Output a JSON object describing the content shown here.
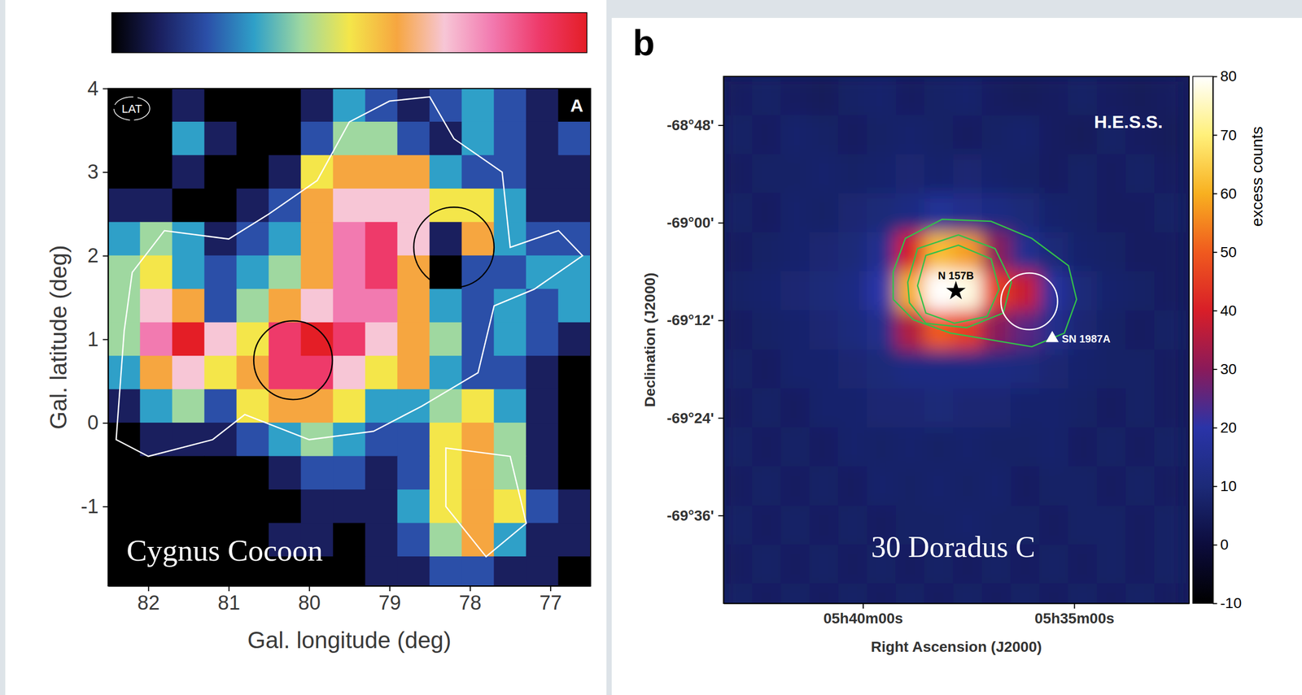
{
  "chart_data": [
    {
      "type": "heatmap",
      "name": "Cygnus Cocoon",
      "instrument": "LAT",
      "panel": "A",
      "x_label": "Gal. longitude (deg)",
      "y_label": "Gal. latitude (deg)",
      "xlim": [
        82.5,
        76.5
      ],
      "ylim": [
        -1.95,
        4
      ],
      "xticks": [
        82,
        81,
        80,
        79,
        78,
        77
      ],
      "yticks": [
        -1,
        0,
        1,
        2,
        3,
        4
      ],
      "zlim": [
        0,
        10
      ],
      "x": [
        82.3,
        81.9,
        81.5,
        81.1,
        80.7,
        80.3,
        79.9,
        79.5,
        79.1,
        78.7,
        78.3,
        77.9,
        77.5,
        77.1,
        76.7
      ],
      "y": [
        3.8,
        3.4,
        3.0,
        2.6,
        2.2,
        1.8,
        1.4,
        1.0,
        0.6,
        0.2,
        -0.2,
        -0.6,
        -1.0,
        -1.4,
        -1.8
      ],
      "z": [
        [
          0,
          0,
          1,
          0,
          0,
          0,
          1,
          3,
          2,
          1,
          2,
          3,
          2,
          1,
          0
        ],
        [
          0,
          0,
          3,
          1,
          0,
          0,
          2,
          4,
          4,
          2,
          1,
          3,
          2,
          1,
          2
        ],
        [
          0,
          0,
          1,
          0,
          0,
          1,
          5,
          6,
          6,
          6,
          3,
          2,
          2,
          1,
          1
        ],
        [
          1,
          1,
          0,
          0,
          1,
          2,
          6,
          7,
          7,
          7,
          5,
          5,
          3,
          1,
          1
        ],
        [
          3,
          4,
          3,
          1,
          2,
          3,
          6,
          8,
          9,
          7,
          1,
          6,
          3,
          2,
          2
        ],
        [
          4,
          5,
          3,
          2,
          3,
          4,
          6,
          8,
          9,
          6,
          0,
          2,
          2,
          3,
          3
        ],
        [
          4,
          7,
          6,
          2,
          4,
          6,
          7,
          8,
          8,
          6,
          3,
          2,
          3,
          2,
          3
        ],
        [
          4,
          8,
          10,
          7,
          5,
          9,
          10,
          9,
          7,
          6,
          4,
          2,
          3,
          2,
          1
        ],
        [
          3,
          6,
          7,
          5,
          6,
          9,
          9,
          7,
          5,
          6,
          3,
          2,
          2,
          1,
          0
        ],
        [
          1,
          3,
          4,
          2,
          5,
          6,
          6,
          5,
          3,
          3,
          4,
          5,
          3,
          1,
          0
        ],
        [
          0,
          1,
          1,
          1,
          2,
          3,
          4,
          3,
          2,
          2,
          5,
          6,
          4,
          1,
          0
        ],
        [
          0,
          0,
          0,
          0,
          0,
          1,
          2,
          2,
          1,
          2,
          5,
          6,
          4,
          1,
          0
        ],
        [
          0,
          0,
          0,
          0,
          0,
          0,
          1,
          1,
          1,
          3,
          5,
          6,
          5,
          2,
          1
        ],
        [
          0,
          0,
          0,
          0,
          0,
          1,
          1,
          0,
          1,
          2,
          4,
          6,
          3,
          1,
          1
        ],
        [
          0,
          0,
          0,
          0,
          0,
          0,
          0,
          0,
          1,
          1,
          2,
          2,
          1,
          1,
          0
        ]
      ],
      "circles": [
        {
          "x": 80.2,
          "y": 0.75,
          "r": 0.47
        },
        {
          "x": 78.2,
          "y": 2.1,
          "r": 0.48
        }
      ],
      "contours": [
        {
          "x": [
            82.3,
            82.2,
            81.8,
            81.0,
            80.5,
            79.9,
            79.5,
            79.0,
            78.5,
            78.2,
            77.6,
            77.5,
            76.9,
            76.6,
            77.2,
            77.7,
            77.9,
            78.6,
            79.2,
            80.0,
            80.8,
            81.2,
            82.0,
            82.4
          ],
          "y": [
            1.1,
            1.8,
            2.3,
            2.2,
            2.5,
            2.9,
            3.6,
            3.85,
            3.9,
            3.4,
            3.0,
            2.1,
            2.3,
            2.0,
            1.6,
            1.4,
            0.6,
            0.2,
            -0.1,
            -0.2,
            0.1,
            -0.2,
            -0.4,
            -0.2
          ]
        },
        {
          "x": [
            78.3,
            77.5,
            77.3,
            77.8,
            78.3
          ],
          "y": [
            -0.3,
            -0.4,
            -1.2,
            -1.6,
            -1.0
          ]
        }
      ]
    },
    {
      "type": "heatmap",
      "name": "30 Doradus C",
      "instrument": "H.E.S.S.",
      "panel": "b",
      "x_label": "Right Ascension (J2000)",
      "y_label": "Declination (J2000)",
      "z_label": "excess counts",
      "xlim": [
        85.825,
        83.07
      ],
      "ylim": [
        -69.78,
        -68.7
      ],
      "xticks": [
        {
          "value": 85,
          "label": "05h40m00s"
        },
        {
          "value": 83.75,
          "label": "05h35m00s"
        }
      ],
      "yticks": [
        {
          "value": -68.8,
          "label": "-68°48'"
        },
        {
          "value": -69.0,
          "label": "-69°00'"
        },
        {
          "value": -69.2,
          "label": "-69°12'"
        },
        {
          "value": -69.4,
          "label": "-69°24'"
        },
        {
          "value": -69.6,
          "label": "-69°36'"
        }
      ],
      "zlim": [
        -10,
        80
      ],
      "zticks": [
        -10,
        0,
        10,
        20,
        30,
        40,
        50,
        60,
        70,
        80
      ],
      "x": [
        85.74,
        85.57,
        85.4,
        85.23,
        85.06,
        84.89,
        84.72,
        84.55,
        84.38,
        84.21,
        84.04,
        83.87,
        83.7,
        83.53,
        83.36,
        83.19
      ],
      "y": [
        -68.74,
        -68.82,
        -68.9,
        -68.98,
        -69.06,
        -69.14,
        -69.22,
        -69.3,
        -69.38,
        -69.46,
        -69.54,
        -69.62,
        -69.7,
        -69.78
      ],
      "z": [
        [
          6,
          7,
          6,
          5,
          7,
          8,
          6,
          7,
          8,
          6,
          5,
          6,
          7,
          6,
          5,
          6
        ],
        [
          7,
          6,
          8,
          7,
          6,
          7,
          8,
          7,
          6,
          7,
          8,
          6,
          5,
          7,
          6,
          5
        ],
        [
          6,
          7,
          7,
          8,
          7,
          8,
          9,
          8,
          9,
          8,
          7,
          6,
          7,
          6,
          7,
          6
        ],
        [
          7,
          6,
          8,
          7,
          9,
          10,
          12,
          16,
          14,
          12,
          10,
          8,
          7,
          6,
          6,
          7
        ],
        [
          6,
          7,
          8,
          9,
          10,
          15,
          40,
          62,
          58,
          30,
          15,
          10,
          8,
          7,
          6,
          6
        ],
        [
          7,
          8,
          9,
          10,
          12,
          20,
          60,
          80,
          78,
          45,
          38,
          18,
          10,
          8,
          7,
          6
        ],
        [
          6,
          7,
          8,
          9,
          11,
          14,
          35,
          50,
          45,
          30,
          25,
          14,
          9,
          7,
          6,
          7
        ],
        [
          7,
          6,
          8,
          8,
          9,
          10,
          12,
          12,
          12,
          12,
          11,
          9,
          8,
          7,
          7,
          6
        ],
        [
          6,
          7,
          6,
          8,
          8,
          9,
          9,
          10,
          9,
          9,
          8,
          8,
          7,
          6,
          7,
          6
        ],
        [
          7,
          6,
          7,
          6,
          8,
          7,
          8,
          7,
          8,
          7,
          7,
          8,
          6,
          7,
          6,
          7
        ],
        [
          6,
          7,
          6,
          7,
          6,
          8,
          7,
          8,
          7,
          8,
          6,
          7,
          7,
          6,
          7,
          6
        ],
        [
          7,
          6,
          7,
          6,
          7,
          6,
          7,
          7,
          8,
          7,
          7,
          6,
          7,
          7,
          6,
          7
        ],
        [
          6,
          7,
          6,
          7,
          6,
          7,
          6,
          7,
          6,
          7,
          6,
          7,
          6,
          7,
          6,
          7
        ],
        [
          7,
          6,
          7,
          6,
          7,
          6,
          7,
          6,
          7,
          6,
          7,
          6,
          7,
          6,
          7,
          6
        ]
      ],
      "circles": [
        {
          "x": 84.016,
          "y": -69.161,
          "r": 0.058
        }
      ],
      "contours": [
        {
          "x": [
            84.821,
            84.749,
            84.532,
            84.242,
            84.001,
            83.784,
            83.736,
            83.808,
            84.001,
            84.242,
            84.484,
            84.701,
            84.821
          ],
          "y": [
            -69.101,
            -69.032,
            -68.993,
            -68.997,
            -69.032,
            -69.088,
            -69.157,
            -69.226,
            -69.254,
            -69.24,
            -69.226,
            -69.199,
            -69.157
          ]
        },
        {
          "x": [
            84.735,
            84.677,
            84.435,
            84.218,
            84.122,
            84.17,
            84.387,
            84.628,
            84.725
          ],
          "y": [
            -69.122,
            -69.053,
            -69.025,
            -69.053,
            -69.122,
            -69.185,
            -69.215,
            -69.206,
            -69.164
          ]
        },
        {
          "x": [
            84.677,
            84.628,
            84.435,
            84.242,
            84.194,
            84.266,
            84.459,
            84.628
          ],
          "y": [
            -69.129,
            -69.067,
            -69.046,
            -69.074,
            -69.136,
            -69.192,
            -69.206,
            -69.185
          ]
        }
      ],
      "points": [
        {
          "label": "N 157B",
          "x": 84.45,
          "y": -69.14,
          "marker": "star"
        },
        {
          "label": "SN 1987A",
          "x": 83.88,
          "y": -69.237,
          "marker": "triangle"
        }
      ]
    }
  ]
}
